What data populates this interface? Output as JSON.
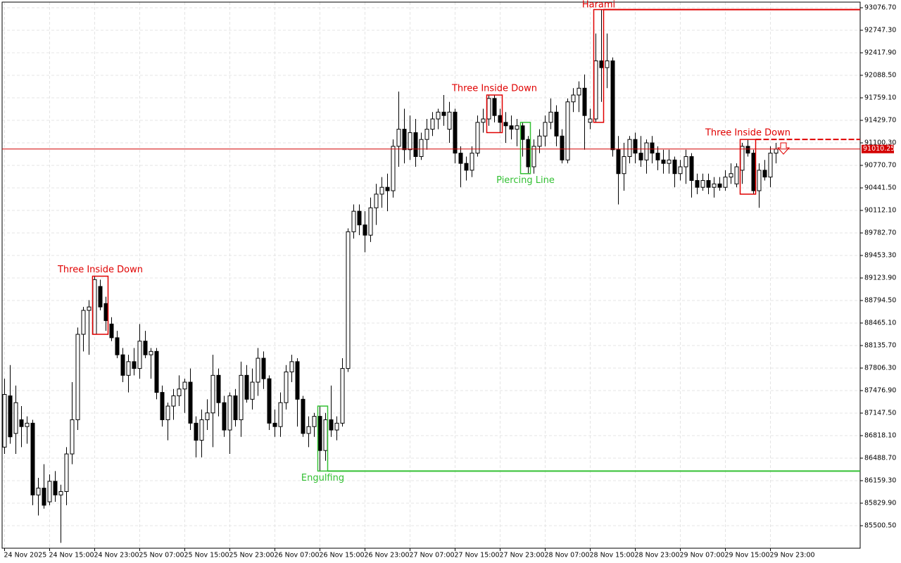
{
  "chart_data": {
    "type": "candlestick",
    "x": [
      "24 Nov 2025",
      null,
      null,
      null,
      null,
      null,
      null,
      null,
      "24 Nov 15:00",
      null,
      null,
      null,
      null,
      null,
      null,
      null,
      "24 Nov 23:00",
      null,
      null,
      null,
      null,
      null,
      null,
      null,
      "25 Nov 07:00",
      null,
      null,
      null,
      null,
      null,
      null,
      null,
      "25 Nov 15:00",
      null,
      null,
      null,
      null,
      null,
      null,
      null,
      "25 Nov 23:00",
      null,
      null,
      null,
      null,
      null,
      null,
      null,
      "26 Nov 07:00",
      null,
      null,
      null,
      null,
      null,
      null,
      null,
      "26 Nov 15:00",
      null,
      null,
      null,
      null,
      null,
      null,
      null,
      "26 Nov 23:00",
      null,
      null,
      null,
      null,
      null,
      null,
      null,
      "27 Nov 07:00",
      null,
      null,
      null,
      null,
      null,
      null,
      null,
      "27 Nov 15:00",
      null,
      null,
      null,
      null,
      null,
      null,
      null,
      "27 Nov 23:00",
      null,
      null,
      null,
      null,
      null,
      null,
      null,
      "28 Nov 07:00",
      null,
      null,
      null,
      null,
      null,
      null,
      null,
      "28 Nov 15:00",
      null,
      null,
      null,
      null,
      null,
      null,
      null,
      "28 Nov 23:00",
      null,
      null,
      null,
      null,
      null,
      null,
      null,
      "29 Nov 07:00",
      null,
      null,
      null,
      null,
      null,
      null,
      null,
      "29 Nov 15:00",
      null,
      null,
      null,
      null,
      null,
      null,
      null,
      "29 Nov 23:00",
      null
    ],
    "open": [
      86650,
      87400,
      86850,
      87050,
      86950,
      87000,
      85950,
      86050,
      85850,
      86150,
      85950,
      86000,
      86550,
      87050,
      88300,
      88650,
      88300,
      89000,
      88750,
      88450,
      88250,
      88000,
      87700,
      87900,
      87800,
      88200,
      88000,
      88050,
      87450,
      87050,
      87250,
      87400,
      87500,
      87600,
      87000,
      86750,
      87050,
      87150,
      87700,
      87300,
      86900,
      87400,
      87050,
      87700,
      87350,
      87600,
      87950,
      87650,
      87000,
      86950,
      87300,
      87750,
      87900,
      87350,
      86850,
      86950,
      87100,
      86600,
      87050,
      86900,
      87000,
      87800,
      89800,
      90100,
      89900,
      89750,
      90150,
      90350,
      90450,
      90400,
      91050,
      91300,
      91000,
      91250,
      90900,
      91150,
      91300,
      91450,
      91550,
      91300,
      91550,
      90950,
      90800,
      90700,
      90950,
      91400,
      91450,
      91750,
      91500,
      91400,
      91350,
      91300,
      91350,
      91150,
      90750,
      91050,
      91200,
      91400,
      91550,
      91200,
      90850,
      91700,
      91800,
      91900,
      91400,
      91450,
      92300,
      92200,
      92300,
      91000,
      90650,
      90900,
      91150,
      90950,
      90850,
      91100,
      90950,
      90850,
      90800,
      90850,
      90650,
      90750,
      90900,
      90550,
      90450,
      90550,
      90450,
      90500,
      90450,
      90600,
      90500,
      90700,
      91050,
      90950,
      90400,
      90700,
      90600,
      90950
    ],
    "high": [
      87650,
      87850,
      87550,
      87250,
      87100,
      87050,
      86200,
      86400,
      86250,
      86300,
      86100,
      86650,
      87600,
      88400,
      88700,
      88800,
      89150,
      89100,
      88850,
      88550,
      88350,
      88100,
      88000,
      88100,
      88450,
      88350,
      88100,
      88100,
      87550,
      87300,
      87500,
      87700,
      87650,
      87800,
      87100,
      87200,
      87350,
      88000,
      87800,
      87400,
      87450,
      87500,
      87900,
      87850,
      87800,
      88100,
      88050,
      87700,
      87200,
      87450,
      87850,
      88000,
      87950,
      87400,
      87100,
      87150,
      87250,
      87150,
      87550,
      87100,
      87950,
      89850,
      90200,
      90200,
      90100,
      90300,
      90500,
      90600,
      90650,
      91150,
      91850,
      91600,
      91500,
      91450,
      91250,
      91450,
      91550,
      91600,
      91800,
      91700,
      91600,
      91050,
      90900,
      91050,
      91500,
      91600,
      91800,
      91800,
      91600,
      91550,
      91500,
      91450,
      91400,
      91200,
      91150,
      91300,
      91500,
      91750,
      91650,
      91300,
      91750,
      91900,
      92000,
      92100,
      91600,
      92700,
      93050,
      92700,
      92350,
      91200,
      91100,
      91200,
      91250,
      91200,
      91150,
      91200,
      91050,
      91000,
      91000,
      90900,
      90850,
      91000,
      90950,
      90650,
      90650,
      90650,
      90600,
      90600,
      90700,
      90800,
      90800,
      91100,
      91150,
      91000,
      90800,
      90850,
      91050,
      91100
    ],
    "low": [
      86550,
      86700,
      86550,
      86650,
      86700,
      85800,
      85650,
      85750,
      85800,
      85850,
      85250,
      85800,
      86400,
      86900,
      88050,
      88000,
      88300,
      88650,
      88350,
      88200,
      87950,
      87600,
      87450,
      87700,
      87650,
      87950,
      87650,
      87350,
      86950,
      86750,
      87050,
      87250,
      87150,
      86900,
      86500,
      86500,
      86900,
      86650,
      87100,
      86800,
      86550,
      86950,
      86800,
      87300,
      87200,
      87400,
      87500,
      86900,
      86800,
      86800,
      87200,
      87600,
      86950,
      86800,
      86650,
      86800,
      86300,
      86450,
      86800,
      86750,
      86950,
      87750,
      89700,
      89750,
      89500,
      89650,
      89900,
      90150,
      90100,
      90300,
      90750,
      90800,
      90850,
      90750,
      90850,
      91000,
      91200,
      91300,
      91350,
      91100,
      90800,
      90450,
      90550,
      90600,
      90900,
      91250,
      91350,
      91400,
      91250,
      91100,
      91150,
      91050,
      90900,
      90650,
      90650,
      90950,
      91050,
      91300,
      91050,
      90800,
      90800,
      91550,
      91550,
      91000,
      91300,
      91400,
      91700,
      91900,
      90900,
      90200,
      90400,
      90800,
      90800,
      90750,
      90650,
      90800,
      90700,
      90650,
      90650,
      90450,
      90550,
      90500,
      90300,
      90350,
      90400,
      90350,
      90300,
      90400,
      90400,
      90500,
      90450,
      90500,
      90900,
      90350,
      90150,
      90550,
      90450,
      90800
    ],
    "close": [
      87420,
      86800,
      87300,
      86950,
      87000,
      85950,
      86050,
      85800,
      86150,
      85950,
      86000,
      86550,
      87050,
      88300,
      88650,
      88700,
      89100,
      88700,
      88500,
      88250,
      88000,
      87700,
      87900,
      87800,
      88200,
      88000,
      88050,
      87450,
      87050,
      87250,
      87400,
      87500,
      87600,
      87000,
      86750,
      87050,
      87150,
      87700,
      87300,
      86900,
      87400,
      87050,
      87700,
      87350,
      87600,
      87950,
      87650,
      87000,
      86950,
      87300,
      87750,
      87900,
      87350,
      86850,
      86950,
      87100,
      86600,
      87050,
      86900,
      87000,
      87800,
      89800,
      90100,
      89900,
      89750,
      90150,
      90350,
      90450,
      90400,
      91050,
      91300,
      91000,
      91250,
      90900,
      91150,
      91300,
      91450,
      91550,
      91500,
      91550,
      90950,
      90800,
      90700,
      90950,
      91400,
      91450,
      91750,
      91500,
      91400,
      91350,
      91300,
      91350,
      91150,
      90750,
      91050,
      91200,
      91400,
      91550,
      91200,
      90850,
      91700,
      91800,
      91900,
      91500,
      91450,
      92300,
      92200,
      92300,
      91000,
      90650,
      90900,
      91150,
      90950,
      90850,
      91100,
      90950,
      90850,
      90800,
      90850,
      90650,
      90750,
      90900,
      90550,
      90450,
      90550,
      90450,
      90500,
      90450,
      90600,
      90650,
      90750,
      91050,
      90950,
      90400,
      90700,
      90600,
      90950,
      91010.25
    ],
    "ylim": [
      85171,
      93159
    ],
    "yticks": [
      {
        "value": 93076.7,
        "label": "93076.70"
      },
      {
        "value": 92747.3,
        "label": "92747.30"
      },
      {
        "value": 92417.9,
        "label": "92417.90"
      },
      {
        "value": 92088.5,
        "label": "92088.50"
      },
      {
        "value": 91759.1,
        "label": "91759.10"
      },
      {
        "value": 91429.7,
        "label": "91429.70"
      },
      {
        "value": 91100.3,
        "label": "91100.30"
      },
      {
        "value": 90770.7,
        "label": "90770.70"
      },
      {
        "value": 90441.5,
        "label": "90441.50"
      },
      {
        "value": 90112.1,
        "label": "90112.10"
      },
      {
        "value": 89782.7,
        "label": "89782.70"
      },
      {
        "value": 89453.3,
        "label": "89453.30"
      },
      {
        "value": 89123.9,
        "label": "89123.90"
      },
      {
        "value": 88794.5,
        "label": "88794.50"
      },
      {
        "value": 88465.1,
        "label": "88465.10"
      },
      {
        "value": 88135.7,
        "label": "88135.70"
      },
      {
        "value": 87806.3,
        "label": "87806.30"
      },
      {
        "value": 87476.9,
        "label": "87476.90"
      },
      {
        "value": 87147.5,
        "label": "87147.50"
      },
      {
        "value": 86818.1,
        "label": "86818.10"
      },
      {
        "value": 86488.7,
        "label": "86488.70"
      },
      {
        "value": 86159.3,
        "label": "86159.30"
      },
      {
        "value": 85829.9,
        "label": "85829.90"
      },
      {
        "value": 85500.5,
        "label": "85500.50"
      }
    ],
    "grid": true,
    "up_color": "#ffffff",
    "down_color": "#000000",
    "last_price_color": "#d40000",
    "patterns": [
      {
        "name": "Three Inside Down",
        "color": "#e00000",
        "candles": [
          16,
          18
        ],
        "bearish": true
      },
      {
        "name": "Engulfing",
        "color": "#33c033",
        "candles": [
          56,
          57
        ],
        "bearish": false,
        "extend": true
      },
      {
        "name": "Three Inside Down",
        "color": "#e00000",
        "candles": [
          86,
          88
        ],
        "bearish": true
      },
      {
        "name": "Piercing Line",
        "color": "#33c033",
        "candles": [
          92,
          93
        ],
        "bearish": false
      },
      {
        "name": "Harami",
        "color": "#e00000",
        "candles": [
          105,
          106
        ],
        "bearish": true,
        "extend": true
      },
      {
        "name": "Three Inside Down",
        "color": "#e00000",
        "candles": [
          131,
          133
        ],
        "bearish": true,
        "extend": true,
        "dashed": true
      }
    ]
  }
}
